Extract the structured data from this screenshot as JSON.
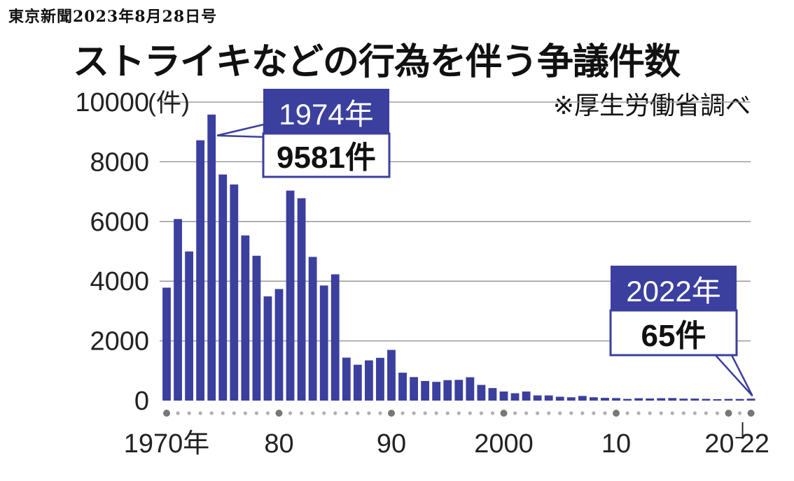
{
  "source_line": "東京新聞2023年8月28日号",
  "chart_data": {
    "type": "bar",
    "title": "ストライキなどの行為を伴う争議件数",
    "note": "※厚生労働省調べ",
    "ylabel": "(件)",
    "ylim": [
      0,
      10000
    ],
    "y_ticks": [
      0,
      2000,
      4000,
      6000,
      8000,
      10000
    ],
    "y_tick_labels": [
      "0",
      "2000",
      "4000",
      "6000",
      "8000",
      "10000"
    ],
    "grid": true,
    "bar_color": "#3b3f9e",
    "x": [
      1970,
      1971,
      1972,
      1973,
      1974,
      1975,
      1976,
      1977,
      1978,
      1979,
      1980,
      1981,
      1982,
      1983,
      1984,
      1985,
      1986,
      1987,
      1988,
      1989,
      1990,
      1991,
      1992,
      1993,
      1994,
      1995,
      1996,
      1997,
      1998,
      1999,
      2000,
      2001,
      2002,
      2003,
      2004,
      2005,
      2006,
      2007,
      2008,
      2009,
      2010,
      2011,
      2012,
      2013,
      2014,
      2015,
      2016,
      2017,
      2018,
      2019,
      2020,
      2021,
      2022
    ],
    "values": [
      3783,
      6082,
      4996,
      8720,
      9581,
      7574,
      7240,
      5533,
      4852,
      3492,
      3737,
      7034,
      6779,
      4814,
      3855,
      4230,
      1439,
      1202,
      1347,
      1433,
      1698,
      935,
      788,
      657,
      628,
      685,
      695,
      782,
      526,
      419,
      305,
      246,
      304,
      174,
      173,
      129,
      111,
      156,
      112,
      92,
      85,
      57,
      79,
      71,
      80,
      86,
      66,
      68,
      58,
      49,
      57,
      55,
      65
    ],
    "x_tick_labels": [
      {
        "year": 1970,
        "label": "1970年"
      },
      {
        "year": 1980,
        "label": "80"
      },
      {
        "year": 1990,
        "label": "90"
      },
      {
        "year": 2000,
        "label": "2000"
      },
      {
        "year": 2010,
        "label": "10"
      },
      {
        "year": 2020,
        "label": "20"
      },
      {
        "year": 2022,
        "label": "22"
      }
    ],
    "marked_years": [
      1970,
      1980,
      1990,
      2000,
      2010,
      2020,
      2022
    ],
    "annotations": [
      {
        "year": 1974,
        "label_top": "1974年",
        "label_bottom": "9581件"
      },
      {
        "year": 2022,
        "label_top": "2022年",
        "label_bottom": "65件"
      }
    ]
  }
}
